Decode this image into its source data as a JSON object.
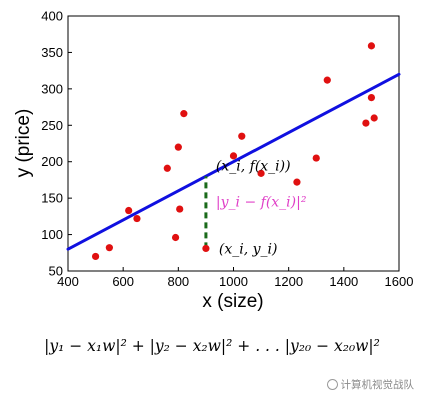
{
  "chart_data": {
    "type": "scatter",
    "xlabel": "x (size)",
    "ylabel": "y (price)",
    "xlim": [
      400,
      1600
    ],
    "ylim": [
      50,
      400
    ],
    "x_ticks": [
      "400",
      "600",
      "800",
      "1000",
      "1200",
      "1400",
      "1600"
    ],
    "y_ticks": [
      "50",
      "100",
      "150",
      "200",
      "250",
      "300",
      "350",
      "400"
    ],
    "points": [
      {
        "x": 500,
        "y": 70
      },
      {
        "x": 550,
        "y": 82
      },
      {
        "x": 620,
        "y": 133
      },
      {
        "x": 650,
        "y": 122
      },
      {
        "x": 760,
        "y": 191
      },
      {
        "x": 790,
        "y": 96
      },
      {
        "x": 800,
        "y": 220
      },
      {
        "x": 805,
        "y": 135
      },
      {
        "x": 820,
        "y": 266
      },
      {
        "x": 900,
        "y": 81
      },
      {
        "x": 1000,
        "y": 208
      },
      {
        "x": 1030,
        "y": 235
      },
      {
        "x": 1100,
        "y": 184
      },
      {
        "x": 1230,
        "y": 172
      },
      {
        "x": 1300,
        "y": 205
      },
      {
        "x": 1340,
        "y": 312
      },
      {
        "x": 1480,
        "y": 253
      },
      {
        "x": 1500,
        "y": 288
      },
      {
        "x": 1500,
        "y": 359
      },
      {
        "x": 1510,
        "y": 260
      }
    ],
    "fit_line": {
      "x": [
        400,
        1600
      ],
      "y": [
        80,
        320
      ],
      "color": "#1010e0"
    },
    "residual": {
      "x": 900,
      "y_from": 81,
      "y_to": 180,
      "color": "#1a6a1a"
    },
    "annotations": {
      "fit_point": "(x_i, f(x_i))",
      "residual_label": "|y_i − f(x_i)|²",
      "data_point": "(x_i, y_i)"
    },
    "point_color": "#e01010",
    "grid": false
  },
  "formula": "|y₁ − x₁w|² + |y₂ − x₂w|² + . . . |y₂₀ − x₂₀w|²",
  "watermark": "计算机视觉战队"
}
